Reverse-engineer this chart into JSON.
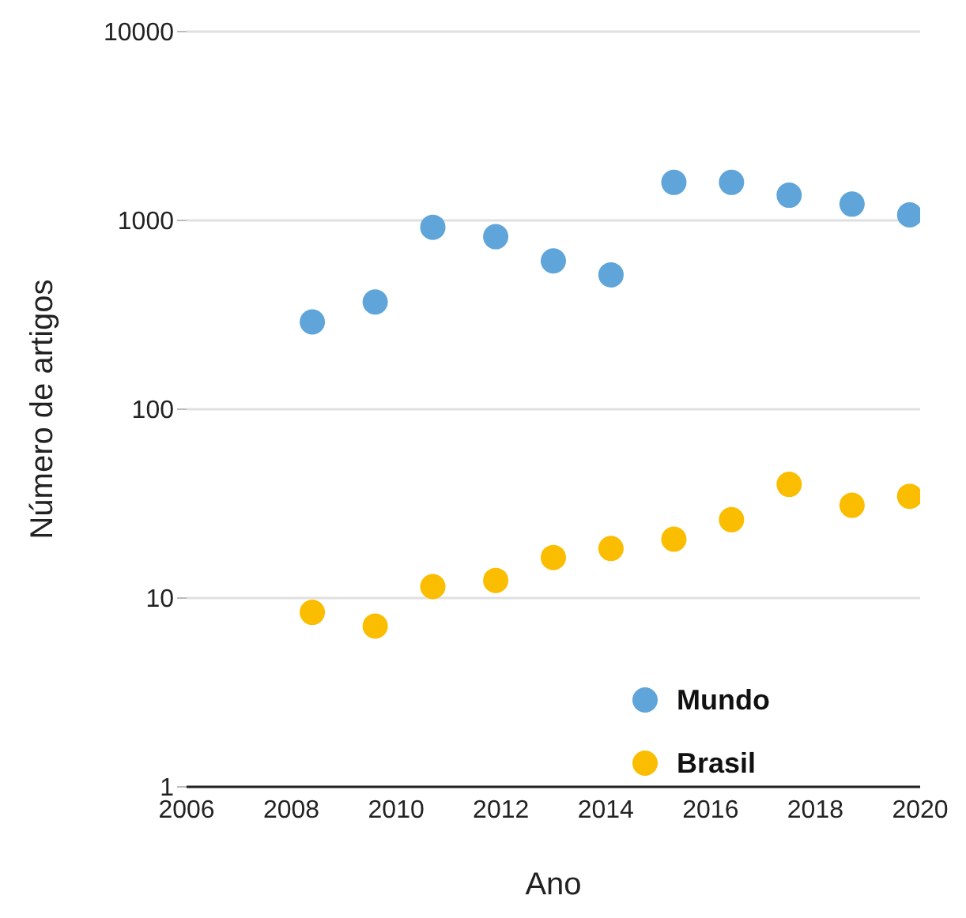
{
  "chart_data": {
    "type": "scatter",
    "xlabel": "Ano",
    "ylabel": "Número de artigos",
    "log": "y",
    "grid": "y",
    "legend": "bottom right",
    "marker": "circle",
    "xlim": [
      2006,
      2020
    ],
    "xticks": [
      2006,
      2008,
      2010,
      2012,
      2014,
      2016,
      2018,
      2020
    ],
    "ylim": [
      1,
      10000
    ],
    "yticks": [
      1,
      10,
      100,
      1000,
      10000
    ],
    "x": [
      2008.4,
      2009.6,
      2010.7,
      2011.9,
      2013.0,
      2014.1,
      2015.3,
      2016.4,
      2017.5,
      2018.7,
      2019.8
    ],
    "series": [
      {
        "name": "Mundo",
        "color": "#5fa5d9",
        "values": [
          290,
          370,
          920,
          820,
          610,
          515,
          1590,
          1590,
          1360,
          1220,
          1070
        ]
      },
      {
        "name": "Brasil",
        "color": "#fbbd00",
        "values": [
          8.4,
          7.1,
          11.5,
          12.4,
          16.4,
          18.3,
          20.5,
          26,
          40,
          31,
          34.6
        ]
      }
    ]
  }
}
